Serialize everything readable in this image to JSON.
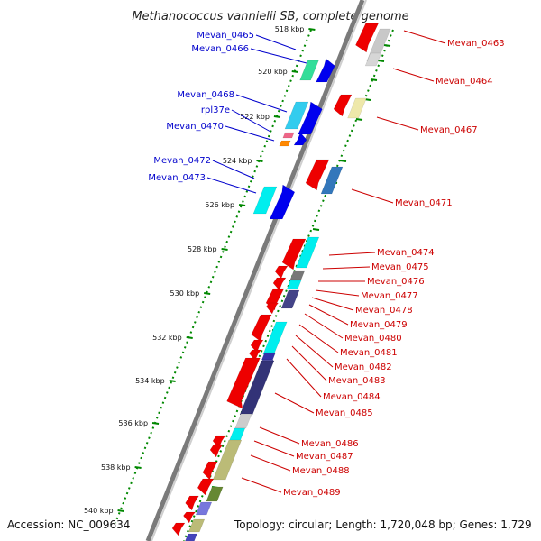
{
  "title": "Methanococcus vannielii SB, complete genome",
  "accession": "Accession: NC_009634",
  "topology": "Topology: circular; Length: 1,720,048 bp; Genes: 1,729",
  "colors": {
    "forward_label": "#0000cc",
    "reverse_label": "#cc0000",
    "backbone": "#7a7a7a",
    "tick": "#008800"
  },
  "ticks": [
    "518 kbp",
    "520 kbp",
    "522 kbp",
    "524 kbp",
    "526 kbp",
    "528 kbp",
    "530 kbp",
    "532 kbp",
    "534 kbp",
    "536 kbp",
    "538 kbp",
    "540 kbp"
  ],
  "labels_left": [
    "Mevan_0465",
    "Mevan_0466",
    "Mevan_0468",
    "rpl37e",
    "Mevan_0470",
    "Mevan_0472",
    "Mevan_0473"
  ],
  "labels_right": [
    "Mevan_0463",
    "Mevan_0464",
    "Mevan_0467",
    "Mevan_0471",
    "Mevan_0474",
    "Mevan_0475",
    "Mevan_0476",
    "Mevan_0477",
    "Mevan_0478",
    "Mevan_0479",
    "Mevan_0480",
    "Mevan_0481",
    "Mevan_0482",
    "Mevan_0483",
    "Mevan_0484",
    "Mevan_0485",
    "Mevan_0486",
    "Mevan_0487",
    "Mevan_0488",
    "Mevan_0489"
  ]
}
